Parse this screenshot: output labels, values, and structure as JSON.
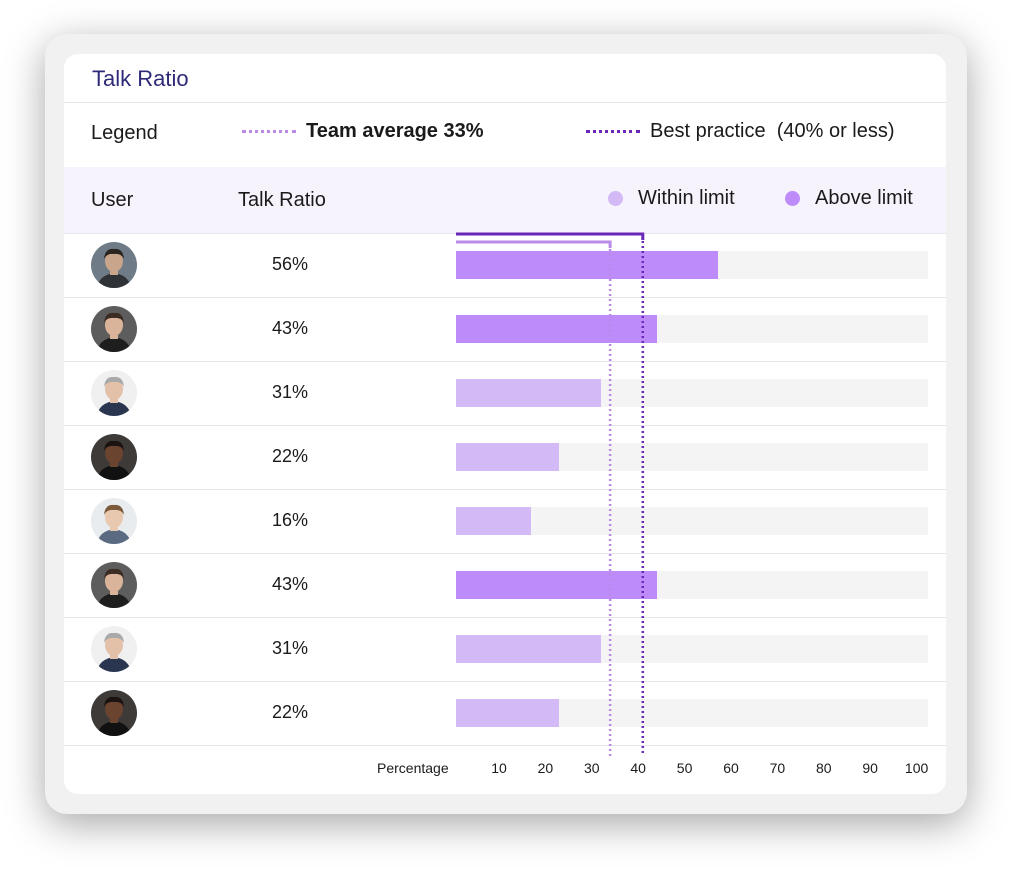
{
  "card": {
    "title": "Talk Ratio"
  },
  "legend": {
    "label": "Legend",
    "team_average": "Team average 33%",
    "best_practice": "Best practice  (40% or less)",
    "team_average_value": 33,
    "best_practice_value": 40
  },
  "table": {
    "col_user": "User",
    "col_talk_ratio": "Talk Ratio",
    "key_within": "Within limit",
    "key_above": "Above limit"
  },
  "colors": {
    "title": "#2d2a78",
    "within": "#d3b9f6",
    "above": "#be8bfa",
    "team_avg_line": "#b98ae8",
    "best_practice_line": "#6a27b8",
    "track": "#f4f4f4"
  },
  "axis": {
    "label": "Percentage",
    "ticks": [
      "10",
      "20",
      "30",
      "40",
      "50",
      "60",
      "70",
      "80",
      "90",
      "100"
    ]
  },
  "chart_data": {
    "type": "bar",
    "orientation": "horizontal",
    "categories": [
      "user-1",
      "user-2",
      "user-3",
      "user-4",
      "user-5",
      "user-6",
      "user-7",
      "user-8"
    ],
    "values": [
      56,
      43,
      31,
      22,
      16,
      43,
      31,
      22
    ],
    "value_labels": [
      "56%",
      "43%",
      "31%",
      "22%",
      "16%",
      "43%",
      "31%",
      "22%"
    ],
    "status": [
      "above",
      "above",
      "within",
      "within",
      "within",
      "above",
      "within",
      "within"
    ],
    "xlabel": "Percentage",
    "xlim": [
      0,
      100
    ],
    "reference_lines": [
      {
        "name": "Team average 33%",
        "value": 33
      },
      {
        "name": "Best practice  (40% or less)",
        "value": 40
      }
    ]
  },
  "users": [
    {
      "avatar": "avatar-man-dark-hair",
      "ratio": "56%",
      "skin": "#c9a58b",
      "hair": "#2b2522",
      "bg": "#6f7b86",
      "shirt": "#2f3338"
    },
    {
      "avatar": "avatar-man-glasses",
      "ratio": "43%",
      "skin": "#d9b49a",
      "hair": "#3a2c22",
      "bg": "#5d5d5d",
      "shirt": "#1e1e1e"
    },
    {
      "avatar": "avatar-man-grey-hair",
      "ratio": "31%",
      "skin": "#e3c1a8",
      "hair": "#a9a9a9",
      "bg": "#f0f0f0",
      "shirt": "#2a3550"
    },
    {
      "avatar": "avatar-man-suit",
      "ratio": "22%",
      "skin": "#6b4430",
      "hair": "#1a1310",
      "bg": "#3d3a38",
      "shirt": "#111111"
    },
    {
      "avatar": "avatar-man-beard-glasses",
      "ratio": "16%",
      "skin": "#e8c8ae",
      "hair": "#7a5a3a",
      "bg": "#e8ecef",
      "shirt": "#5a6a80"
    },
    {
      "avatar": "avatar-man-glasses",
      "ratio": "43%",
      "skin": "#d9b49a",
      "hair": "#3a2c22",
      "bg": "#5d5d5d",
      "shirt": "#1e1e1e"
    },
    {
      "avatar": "avatar-man-grey-hair",
      "ratio": "31%",
      "skin": "#e3c1a8",
      "hair": "#a9a9a9",
      "bg": "#f0f0f0",
      "shirt": "#2a3550"
    },
    {
      "avatar": "avatar-man-suit",
      "ratio": "22%",
      "skin": "#6b4430",
      "hair": "#1a1310",
      "bg": "#3d3a38",
      "shirt": "#111111"
    }
  ]
}
